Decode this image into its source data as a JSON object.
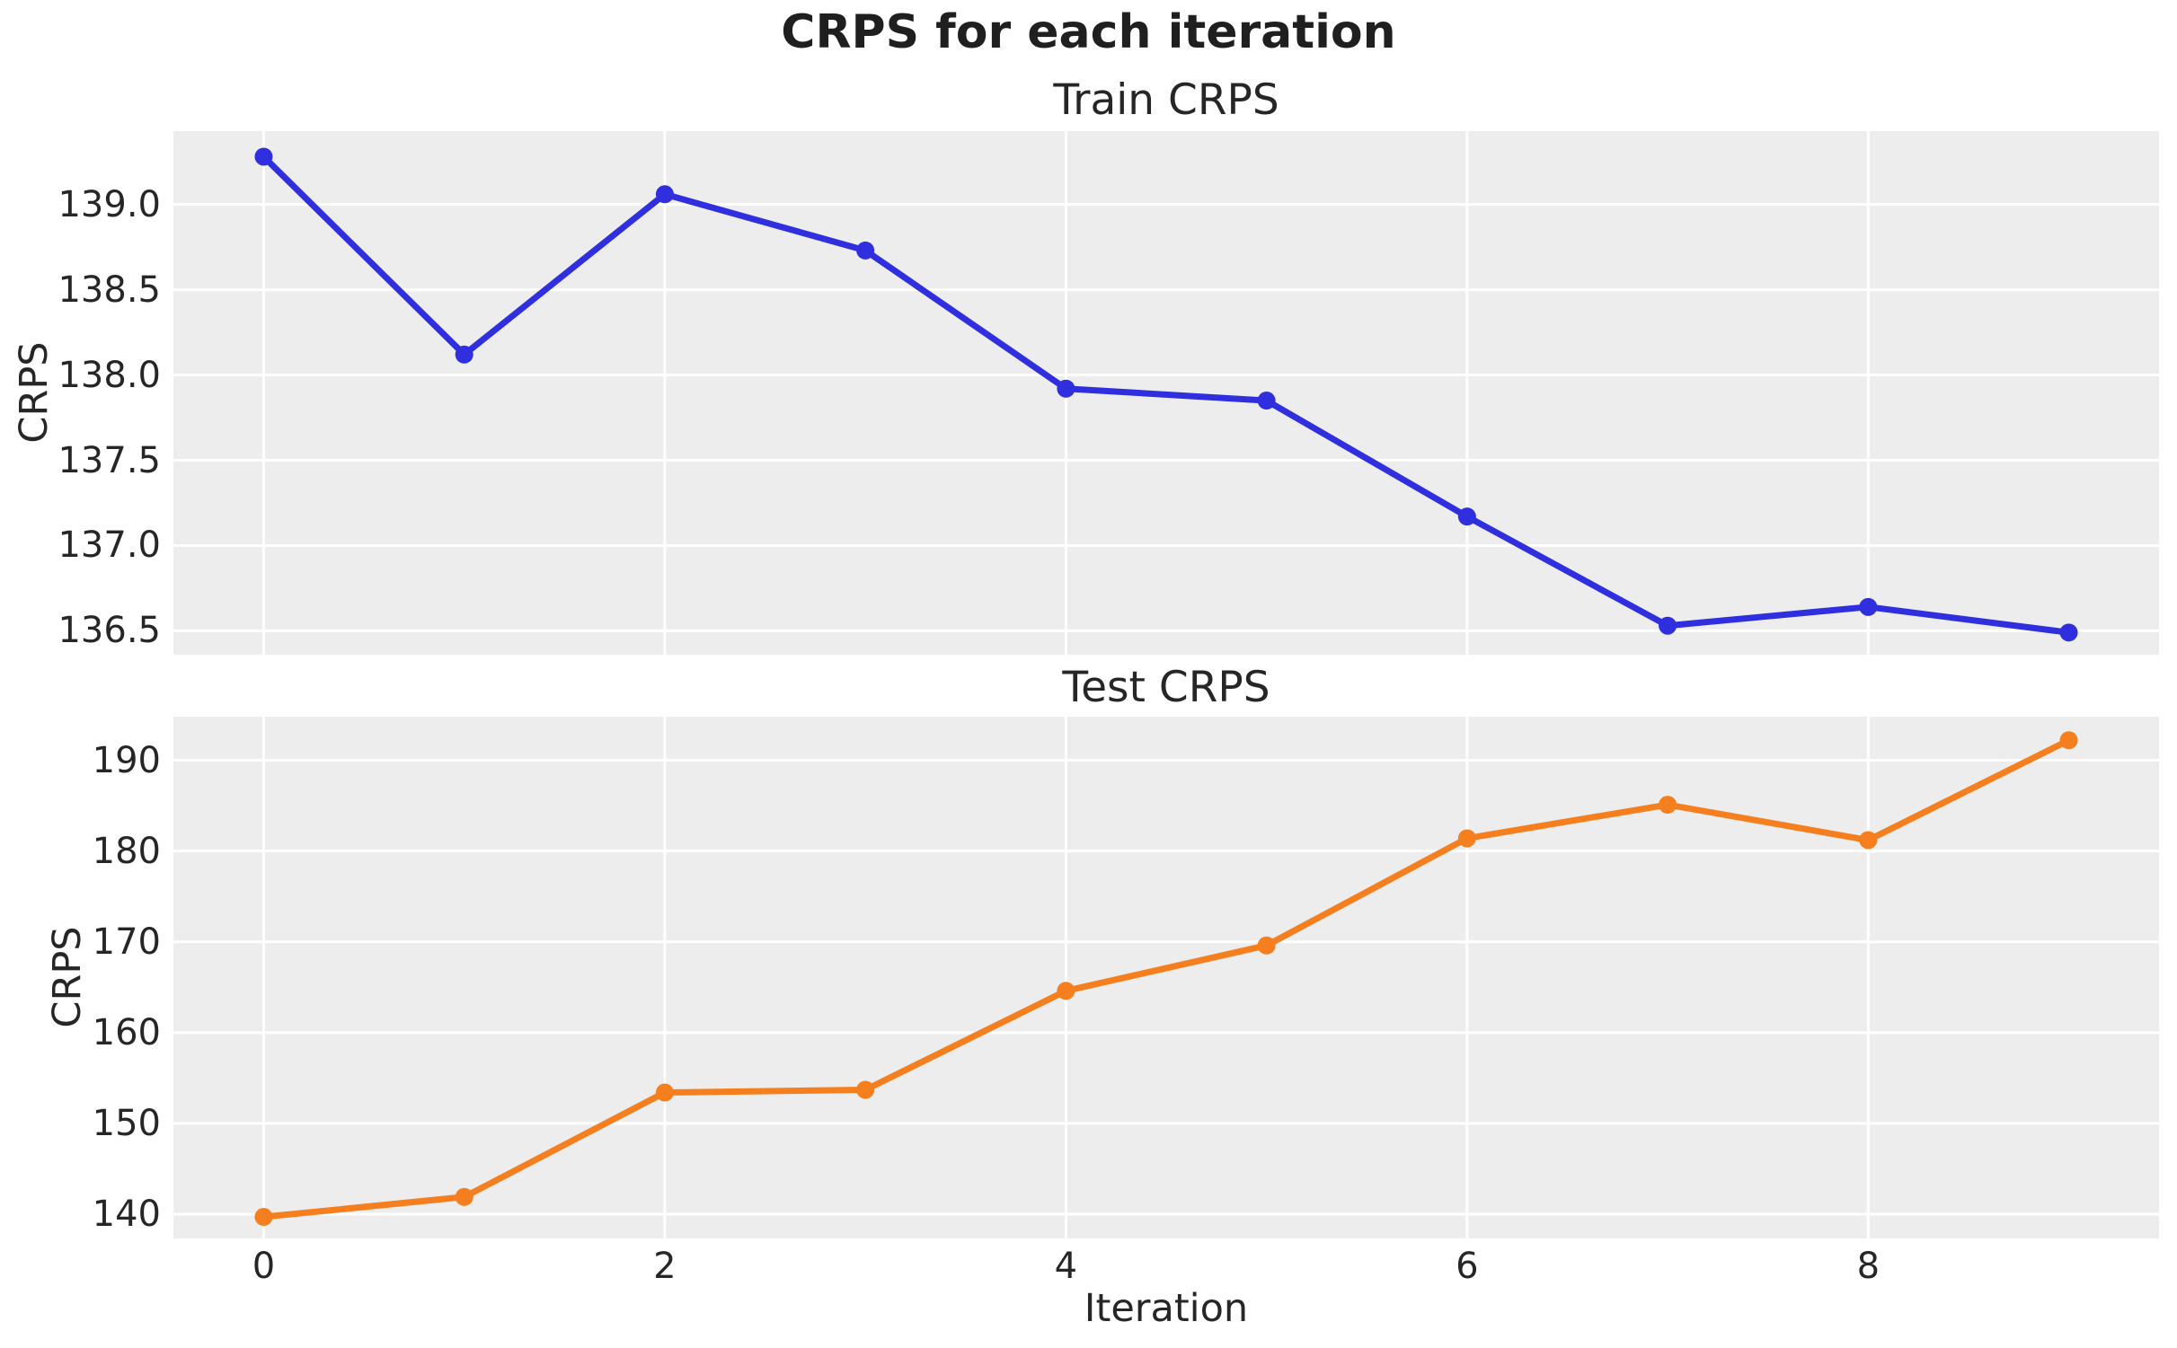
{
  "figure": {
    "title": "CRPS for each iteration",
    "background": "#ffffff",
    "plot_background": "#ededed",
    "grid_color": "#ffffff",
    "text_color": "#262626"
  },
  "chart_data": [
    {
      "type": "line",
      "title": "Train CRPS",
      "xlabel": "",
      "ylabel": "CRPS",
      "x": [
        0,
        1,
        2,
        3,
        4,
        5,
        6,
        7,
        8,
        9
      ],
      "series": [
        {
          "name": "Train CRPS",
          "color": "#2f2fdf",
          "marker": "circle",
          "values": [
            139.28,
            138.12,
            139.06,
            138.73,
            137.92,
            137.85,
            137.17,
            136.53,
            136.64,
            136.49
          ]
        }
      ],
      "xlim": [
        -0.45,
        9.45
      ],
      "ylim": [
        136.36,
        139.43
      ],
      "xticks": [
        0,
        2,
        4,
        6,
        8
      ],
      "xtick_labels": [],
      "yticks": [
        136.5,
        137.0,
        137.5,
        138.0,
        138.5,
        139.0
      ],
      "ytick_labels": [
        "136.5",
        "137.0",
        "137.5",
        "138.0",
        "138.5",
        "139.0"
      ],
      "grid": true,
      "legend": "none"
    },
    {
      "type": "line",
      "title": "Test CRPS",
      "xlabel": "Iteration",
      "ylabel": "CRPS",
      "x": [
        0,
        1,
        2,
        3,
        4,
        5,
        6,
        7,
        8,
        9
      ],
      "series": [
        {
          "name": "Test CRPS",
          "color": "#f57f1e",
          "marker": "circle",
          "values": [
            139.7,
            141.9,
            153.4,
            153.7,
            164.6,
            169.6,
            181.4,
            185.1,
            181.2,
            192.2
          ]
        }
      ],
      "xlim": [
        -0.45,
        9.45
      ],
      "ylim": [
        137.33,
        194.8
      ],
      "xticks": [
        0,
        2,
        4,
        6,
        8
      ],
      "xtick_labels": [
        "0",
        "2",
        "4",
        "6",
        "8"
      ],
      "yticks": [
        140,
        150,
        160,
        170,
        180,
        190
      ],
      "ytick_labels": [
        "140",
        "150",
        "160",
        "170",
        "180",
        "190"
      ],
      "grid": true,
      "legend": "none"
    }
  ]
}
